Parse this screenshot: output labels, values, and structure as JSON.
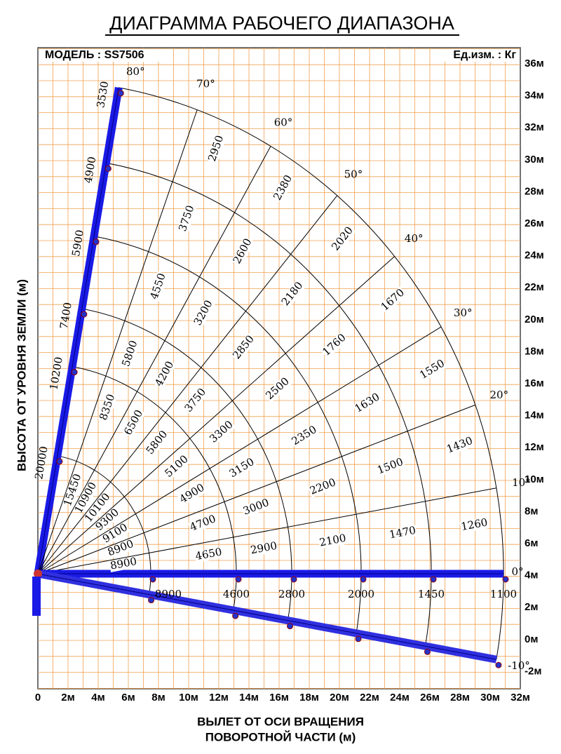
{
  "header": {
    "title": "ДИАГРАММА РАБОЧЕГО ДИАПАЗОНА",
    "model": "МОДЕЛЬ : SS7506",
    "unit": "Ед.изм. : Кг"
  },
  "y_axis": {
    "title": "ВЫСОТА ОТ УРОВНЯ ЗЕМЛИ (м)",
    "labels": [
      "36м",
      "34м",
      "32м",
      "30м",
      "28м",
      "26м",
      "24м",
      "22м",
      "20м",
      "18м",
      "16м",
      "14м",
      "12м",
      "10м",
      "8м",
      "6м",
      "4м",
      "2м",
      "0м",
      "-2м"
    ]
  },
  "x_axis": {
    "title": [
      "ВЫЛЕТ ОТ ОСИ ВРАЩЕНИЯ",
      "ПОВОРОТНОЙ ЧАСТИ (м)"
    ],
    "labels": [
      "0",
      "2м",
      "4м",
      "6м",
      "8м",
      "10м",
      "12м",
      "14м",
      "16м",
      "18м",
      "20м",
      "22м",
      "24м",
      "26м",
      "28м",
      "30м",
      "32м"
    ]
  },
  "rays": [
    {
      "angle": "80°",
      "loads": [
        20000,
        10200,
        7400,
        5900,
        4900,
        3530
      ]
    },
    {
      "angle": "70°",
      "loads": [
        15450,
        8350,
        5800,
        4550,
        3750,
        2950
      ]
    },
    {
      "angle": "60°",
      "loads": [
        10900,
        6500,
        4200,
        3200,
        2600,
        2380
      ]
    },
    {
      "angle": "50°",
      "loads": [
        10100,
        5800,
        3750,
        2850,
        2180,
        2020
      ]
    },
    {
      "angle": "40°",
      "loads": [
        9300,
        5100,
        3300,
        2500,
        1760,
        1670
      ]
    },
    {
      "angle": "30°",
      "loads": [
        9100,
        4900,
        3150,
        2350,
        1630,
        1550
      ]
    },
    {
      "angle": "20°",
      "loads": [
        8900,
        4700,
        3000,
        2200,
        1500,
        1430
      ]
    },
    {
      "angle": "10°",
      "loads": [
        8900,
        4650,
        2900,
        2100,
        1470,
        1260
      ]
    },
    {
      "angle": "0°",
      "loads": [
        8900,
        4600,
        2800,
        2000,
        1450,
        1100
      ]
    },
    {
      "angle": "-10°",
      "loads": []
    }
  ]
}
